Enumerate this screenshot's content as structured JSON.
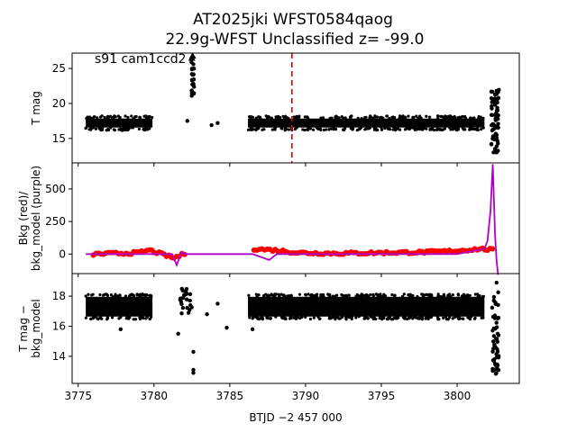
{
  "title_line1": "AT2025jki  WFST0584qaog",
  "title_line2": "22.9g-WFST Unclassified z= -99.0",
  "annotation": "s91 cam1ccd2",
  "colors": {
    "points": "#000000",
    "bkg": "#ff0000",
    "bkg_model": "#b000c8",
    "marker_line": "#e00000"
  },
  "chart_data": [
    {
      "type": "scatter",
      "name": "T mag",
      "ylabel": "T mag",
      "ylim": [
        27.2,
        11.5
      ],
      "yticks": [
        15,
        20,
        25
      ],
      "xlim": [
        3774.6,
        3804.1
      ],
      "vline_x": 3789.1,
      "bands": [
        [
          3775.5,
          3779.9,
          17.2
        ],
        [
          3786.2,
          3801.8,
          17.2
        ]
      ],
      "points": [
        [
          3777.9,
          16.2
        ],
        [
          3782.2,
          17.5
        ],
        [
          3783.8,
          16.9
        ],
        [
          3784.2,
          17.2
        ],
        [
          3782.5,
          21.5
        ],
        [
          3782.6,
          22.8
        ],
        [
          3782.5,
          24.2
        ],
        [
          3782.6,
          25.6
        ],
        [
          3802.4,
          13.0
        ],
        [
          3802.5,
          19.8
        ],
        [
          3802.6,
          21.8
        ]
      ],
      "triangles": [
        [
          3782.5,
          26.5
        ],
        [
          3782.55,
          26.8
        ]
      ]
    },
    {
      "type": "line",
      "name": "Bkg",
      "ylabel_line1": "Bkg (red)/",
      "ylabel_line2": "bkg_model (purple)",
      "ylim": [
        -150,
        700
      ],
      "yticks": [
        0,
        250,
        500
      ],
      "bkg_model_x": [
        3775.5,
        3779.8,
        3781.2,
        3781.5,
        3781.8,
        3782.2,
        3783.0,
        3786.5,
        3787.6,
        3788.1,
        3790.0,
        3800.0,
        3801.8,
        3802.0,
        3802.2,
        3802.35,
        3802.5,
        3802.6,
        3802.7
      ],
      "bkg_model_y": [
        0,
        0,
        0,
        -85,
        10,
        0,
        0,
        0,
        -45,
        0,
        0,
        0,
        40,
        100,
        330,
        690,
        150,
        -50,
        -160
      ],
      "bkg_x": [
        3776.0,
        3777.5,
        3779.0,
        3779.7,
        3781.3,
        3782.2,
        3786.6,
        3788.0,
        3789.5,
        3792.0,
        3795.0,
        3798.0,
        3800.0,
        3801.5,
        3802.5
      ],
      "bkg_y": [
        0,
        5,
        10,
        30,
        -30,
        10,
        40,
        30,
        10,
        5,
        10,
        15,
        25,
        40,
        30
      ]
    },
    {
      "type": "scatter",
      "name": "T mag - bkg_model",
      "ylabel_line1": "T mag −",
      "ylabel_line2": "bkg_model",
      "ylim": [
        19.5,
        12.2
      ],
      "yticks": [
        14,
        16,
        18
      ],
      "bands": [
        [
          3775.5,
          3779.9,
          17.3
        ],
        [
          3786.2,
          3801.8,
          17.3
        ]
      ],
      "points": [
        [
          3777.8,
          15.8
        ],
        [
          3781.6,
          15.5
        ],
        [
          3782.6,
          12.9
        ],
        [
          3782.6,
          13.1
        ],
        [
          3782.6,
          14.3
        ],
        [
          3783.5,
          16.8
        ],
        [
          3784.2,
          17.5
        ],
        [
          3784.8,
          15.9
        ],
        [
          3786.5,
          15.8
        ],
        [
          3802.5,
          13.5
        ],
        [
          3802.6,
          18.9
        ]
      ]
    }
  ],
  "xaxis": {
    "label": "BTJD −2 457 000",
    "ticks": [
      3775,
      3780,
      3785,
      3790,
      3795,
      3800
    ],
    "tick_labels": [
      "3775",
      "3780",
      "3785",
      "3790",
      "3795",
      "3800"
    ]
  }
}
